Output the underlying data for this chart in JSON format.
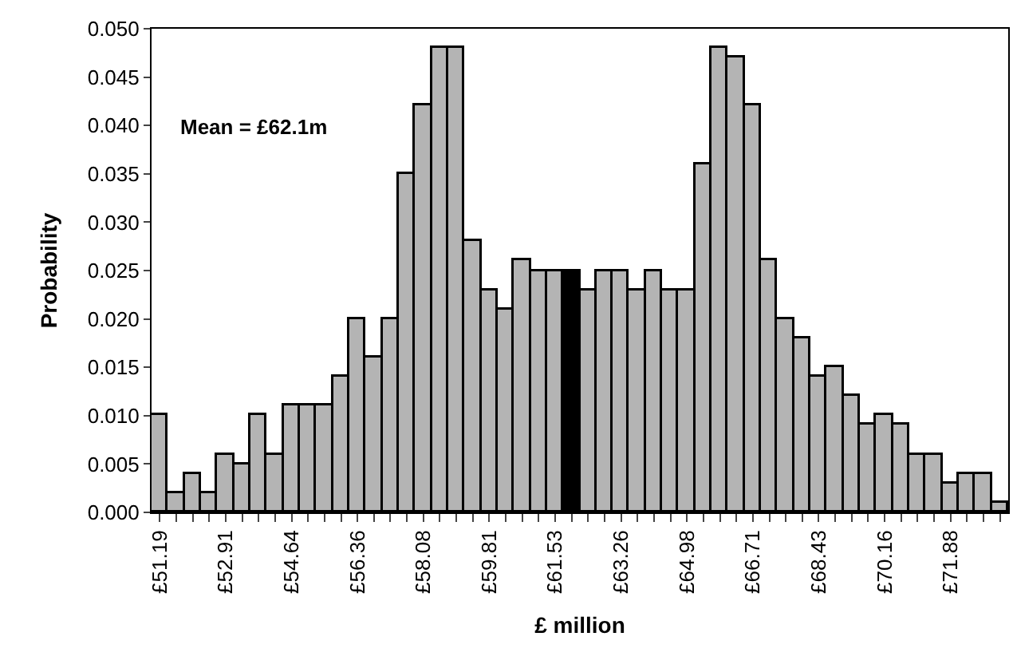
{
  "chart_data": {
    "type": "bar",
    "xlabel": "£ million",
    "ylabel": "Probability",
    "annotations": [
      "Mean = £62.1m"
    ],
    "categories": [
      "£51.19",
      null,
      null,
      null,
      "£52.91",
      null,
      null,
      null,
      "£54.64",
      null,
      null,
      null,
      "£56.36",
      null,
      null,
      null,
      "£58.08",
      null,
      null,
      null,
      "£59.81",
      null,
      null,
      null,
      "£61.53",
      null,
      null,
      null,
      "£63.26",
      null,
      null,
      null,
      "£64.98",
      null,
      null,
      null,
      "£66.71",
      null,
      null,
      null,
      "£68.43",
      null,
      null,
      null,
      "£70.16",
      null,
      null,
      null,
      "£71.88",
      null,
      null,
      null
    ],
    "values": [
      0.01,
      0.002,
      0.004,
      0.002,
      0.006,
      0.005,
      0.01,
      0.006,
      0.011,
      0.011,
      0.011,
      0.014,
      0.02,
      0.016,
      0.02,
      0.035,
      0.042,
      0.048,
      0.048,
      0.028,
      0.023,
      0.021,
      0.026,
      0.025,
      0.025,
      0.025,
      0.023,
      0.025,
      0.025,
      0.023,
      0.025,
      0.023,
      0.023,
      0.036,
      0.048,
      0.047,
      0.042,
      0.026,
      0.02,
      0.018,
      0.014,
      0.015,
      0.012,
      0.009,
      0.01,
      0.009,
      0.006,
      0.006,
      0.003,
      0.004,
      0.004,
      0.001
    ],
    "colors": [
      "#b4b4b4",
      "#b4b4b4",
      "#b4b4b4",
      "#b4b4b4",
      "#b4b4b4",
      "#b4b4b4",
      "#b4b4b4",
      "#b4b4b4",
      "#b4b4b4",
      "#b4b4b4",
      "#b4b4b4",
      "#b4b4b4",
      "#b4b4b4",
      "#b4b4b4",
      "#b4b4b4",
      "#b4b4b4",
      "#b4b4b4",
      "#b4b4b4",
      "#b4b4b4",
      "#b4b4b4",
      "#b4b4b4",
      "#b4b4b4",
      "#b4b4b4",
      "#b4b4b4",
      "#b4b4b4",
      "#000000",
      "#b4b4b4",
      "#b4b4b4",
      "#b4b4b4",
      "#b4b4b4",
      "#b4b4b4",
      "#b4b4b4",
      "#b4b4b4",
      "#b4b4b4",
      "#b4b4b4",
      "#b4b4b4",
      "#b4b4b4",
      "#b4b4b4",
      "#b4b4b4",
      "#b4b4b4",
      "#b4b4b4",
      "#b4b4b4",
      "#b4b4b4",
      "#b4b4b4",
      "#b4b4b4",
      "#b4b4b4",
      "#b4b4b4",
      "#b4b4b4",
      "#b4b4b4",
      "#b4b4b4",
      "#b4b4b4",
      "#b4b4b4"
    ],
    "ylim": [
      0,
      0.05
    ],
    "yticks": [
      {
        "value": 0,
        "label": "0.000"
      },
      {
        "value": 0.005,
        "label": "0.005"
      },
      {
        "value": 0.01,
        "label": "0.010"
      },
      {
        "value": 0.015,
        "label": "0.015"
      },
      {
        "value": 0.02,
        "label": "0.020"
      },
      {
        "value": 0.025,
        "label": "0.025"
      },
      {
        "value": 0.03,
        "label": "0.030"
      },
      {
        "value": 0.035,
        "label": "0.035"
      },
      {
        "value": 0.04,
        "label": "0.040"
      },
      {
        "value": 0.045,
        "label": "0.045"
      },
      {
        "value": 0.05,
        "label": "0.050"
      }
    ]
  }
}
